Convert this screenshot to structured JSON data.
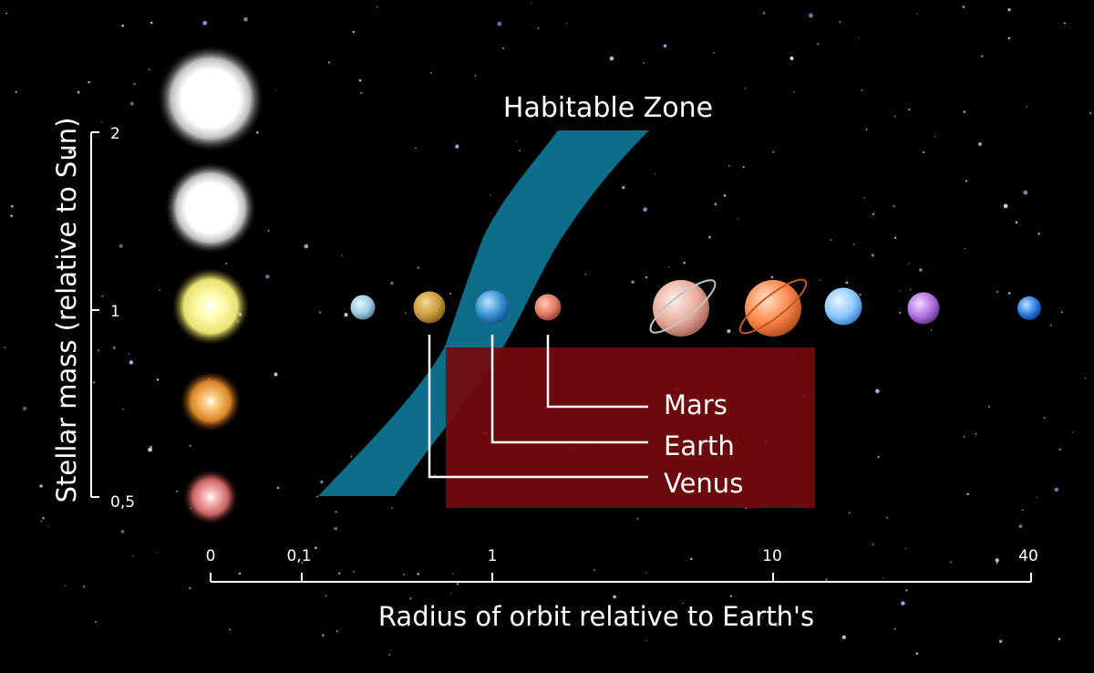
{
  "title": "Habitable Zone",
  "y_axis": {
    "label": "Stellar mass (relative to Sun)",
    "ticks": [
      "2",
      "1",
      "0,5"
    ]
  },
  "x_axis": {
    "label": "Radius of orbit relative to Earth's",
    "ticks": [
      "0",
      "0,1",
      "1",
      "10",
      "40"
    ]
  },
  "planet_labels": {
    "mars": "Mars",
    "earth": "Earth",
    "venus": "Venus"
  },
  "colors": {
    "background": "#000000",
    "habitable_zone": "#0e6e8a",
    "highlight_box": "#740a0d",
    "text": "#ffffff"
  },
  "stars": [
    {
      "name": "star-2-solar-mass",
      "color": "#ffffff"
    },
    {
      "name": "star-1-5-solar-mass",
      "color": "#ffffff"
    },
    {
      "name": "star-1-solar-mass",
      "color": "#ffff9a"
    },
    {
      "name": "star-0-75-solar-mass",
      "color": "#ffaa33"
    },
    {
      "name": "star-0-5-solar-mass",
      "color": "#ff8a8a"
    }
  ],
  "planets": [
    {
      "name": "mercury",
      "color": "#a9d4e6"
    },
    {
      "name": "venus",
      "color": "#c89a3c"
    },
    {
      "name": "earth",
      "color": "#3b95d6"
    },
    {
      "name": "mars",
      "color": "#e07a62"
    },
    {
      "name": "jupiter",
      "color": "#e8a89a"
    },
    {
      "name": "saturn",
      "color": "#ff8c50"
    },
    {
      "name": "uranus",
      "color": "#8cc8ff"
    },
    {
      "name": "neptune",
      "color": "#b070e0"
    },
    {
      "name": "pluto",
      "color": "#2a7ee0"
    }
  ]
}
